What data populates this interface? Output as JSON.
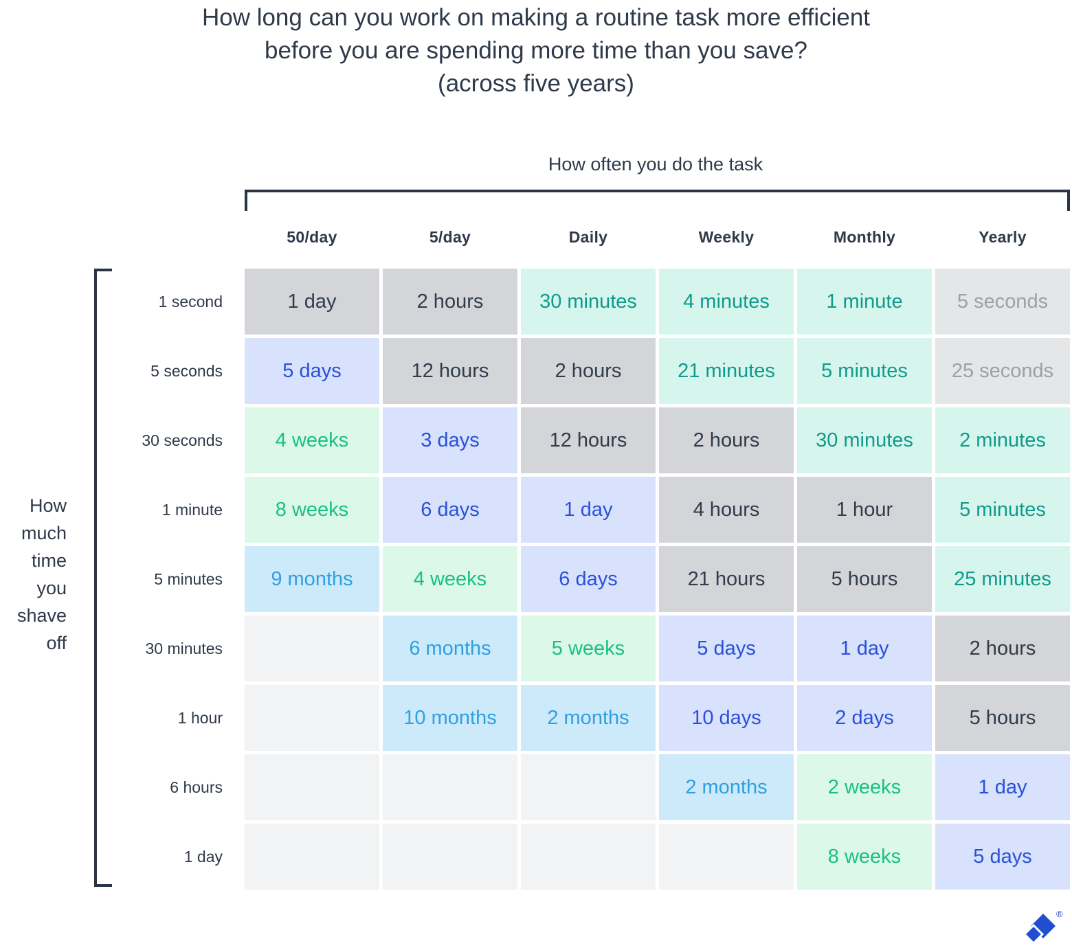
{
  "title": {
    "line1": "How long can you work on making a routine task more efficient",
    "line2": "before you are spending more time than you save?",
    "line3": "(across five years)"
  },
  "chart_data": {
    "type": "heatmap",
    "title": "How long can you work on making a routine task more efficient before you are spending more time than you save? (across five years)",
    "x_label": "How often you do the task",
    "y_label": "How much time you shave off",
    "x_categories": [
      "50/day",
      "5/day",
      "Daily",
      "Weekly",
      "Monthly",
      "Yearly"
    ],
    "y_categories": [
      "1 second",
      "5 seconds",
      "30 seconds",
      "1 minute",
      "5 minutes",
      "30 minutes",
      "1 hour",
      "6 hours",
      "1 day"
    ],
    "legend": "cell color encodes time-unit magnitude: months=cyan, weeks=green, days=blue, hours/1 day=gray, minutes=mint, seconds=lightgray, blank=empty",
    "rows": [
      {
        "label": "1 second",
        "cells": [
          {
            "value": "1 day",
            "category": "gray"
          },
          {
            "value": "2 hours",
            "category": "gray"
          },
          {
            "value": "30 minutes",
            "category": "mint"
          },
          {
            "value": "4 minutes",
            "category": "mint"
          },
          {
            "value": "1 minute",
            "category": "mint"
          },
          {
            "value": "5 seconds",
            "category": "lightgray"
          }
        ]
      },
      {
        "label": "5 seconds",
        "cells": [
          {
            "value": "5 days",
            "category": "blue"
          },
          {
            "value": "12 hours",
            "category": "gray"
          },
          {
            "value": "2 hours",
            "category": "gray"
          },
          {
            "value": "21 minutes",
            "category": "mint"
          },
          {
            "value": "5 minutes",
            "category": "mint"
          },
          {
            "value": "25 seconds",
            "category": "lightgray"
          }
        ]
      },
      {
        "label": "30 seconds",
        "cells": [
          {
            "value": "4 weeks",
            "category": "green"
          },
          {
            "value": "3 days",
            "category": "blue"
          },
          {
            "value": "12 hours",
            "category": "gray"
          },
          {
            "value": "2 hours",
            "category": "gray"
          },
          {
            "value": "30 minutes",
            "category": "mint"
          },
          {
            "value": "2 minutes",
            "category": "mint"
          }
        ]
      },
      {
        "label": "1 minute",
        "cells": [
          {
            "value": "8 weeks",
            "category": "green"
          },
          {
            "value": "6 days",
            "category": "blue"
          },
          {
            "value": "1 day",
            "category": "blue"
          },
          {
            "value": "4 hours",
            "category": "gray"
          },
          {
            "value": "1 hour",
            "category": "gray"
          },
          {
            "value": "5 minutes",
            "category": "mint"
          }
        ]
      },
      {
        "label": "5 minutes",
        "cells": [
          {
            "value": "9 months",
            "category": "cyan"
          },
          {
            "value": "4 weeks",
            "category": "green"
          },
          {
            "value": "6 days",
            "category": "blue"
          },
          {
            "value": "21 hours",
            "category": "gray"
          },
          {
            "value": "5 hours",
            "category": "gray"
          },
          {
            "value": "25 minutes",
            "category": "mint"
          }
        ]
      },
      {
        "label": "30 minutes",
        "cells": [
          {
            "value": "",
            "category": "empty"
          },
          {
            "value": "6 months",
            "category": "cyan"
          },
          {
            "value": "5 weeks",
            "category": "green"
          },
          {
            "value": "5 days",
            "category": "blue"
          },
          {
            "value": "1 day",
            "category": "blue"
          },
          {
            "value": "2 hours",
            "category": "gray"
          }
        ]
      },
      {
        "label": "1 hour",
        "cells": [
          {
            "value": "",
            "category": "empty"
          },
          {
            "value": "10 months",
            "category": "cyan"
          },
          {
            "value": "2 months",
            "category": "cyan"
          },
          {
            "value": "10 days",
            "category": "blue"
          },
          {
            "value": "2 days",
            "category": "blue"
          },
          {
            "value": "5 hours",
            "category": "gray"
          }
        ]
      },
      {
        "label": "6 hours",
        "cells": [
          {
            "value": "",
            "category": "empty"
          },
          {
            "value": "",
            "category": "empty"
          },
          {
            "value": "",
            "category": "empty"
          },
          {
            "value": "2 months",
            "category": "cyan"
          },
          {
            "value": "2 weeks",
            "category": "green"
          },
          {
            "value": "1 day",
            "category": "blue"
          }
        ]
      },
      {
        "label": "1 day",
        "cells": [
          {
            "value": "",
            "category": "empty"
          },
          {
            "value": "",
            "category": "empty"
          },
          {
            "value": "",
            "category": "empty"
          },
          {
            "value": "",
            "category": "empty"
          },
          {
            "value": "8 weeks",
            "category": "green"
          },
          {
            "value": "5 days",
            "category": "blue"
          }
        ]
      }
    ]
  },
  "cell_styles": {
    "gray": {
      "bg": "#d4d5d8",
      "fg": "#313c4b"
    },
    "lightgray": {
      "bg": "#e5e6e8",
      "fg": "#9ba1a8"
    },
    "mint": {
      "bg": "#d6f6ed",
      "fg": "#0f9a8b"
    },
    "green": {
      "bg": "#dcf8e9",
      "fg": "#19c17d"
    },
    "blue": {
      "bg": "#d8e2fc",
      "fg": "#2b50d8"
    },
    "cyan": {
      "bg": "#cdeafb",
      "fg": "#2f9fe1"
    },
    "empty": {
      "bg": "#f2f3f4",
      "fg": "#f2f3f4"
    }
  },
  "colors": {
    "text_dark": "#2e3949",
    "bracket": "#2b3442",
    "logo_blue": "#204ecf"
  },
  "logo": {
    "name": "Toptal",
    "registered_mark": "®"
  }
}
